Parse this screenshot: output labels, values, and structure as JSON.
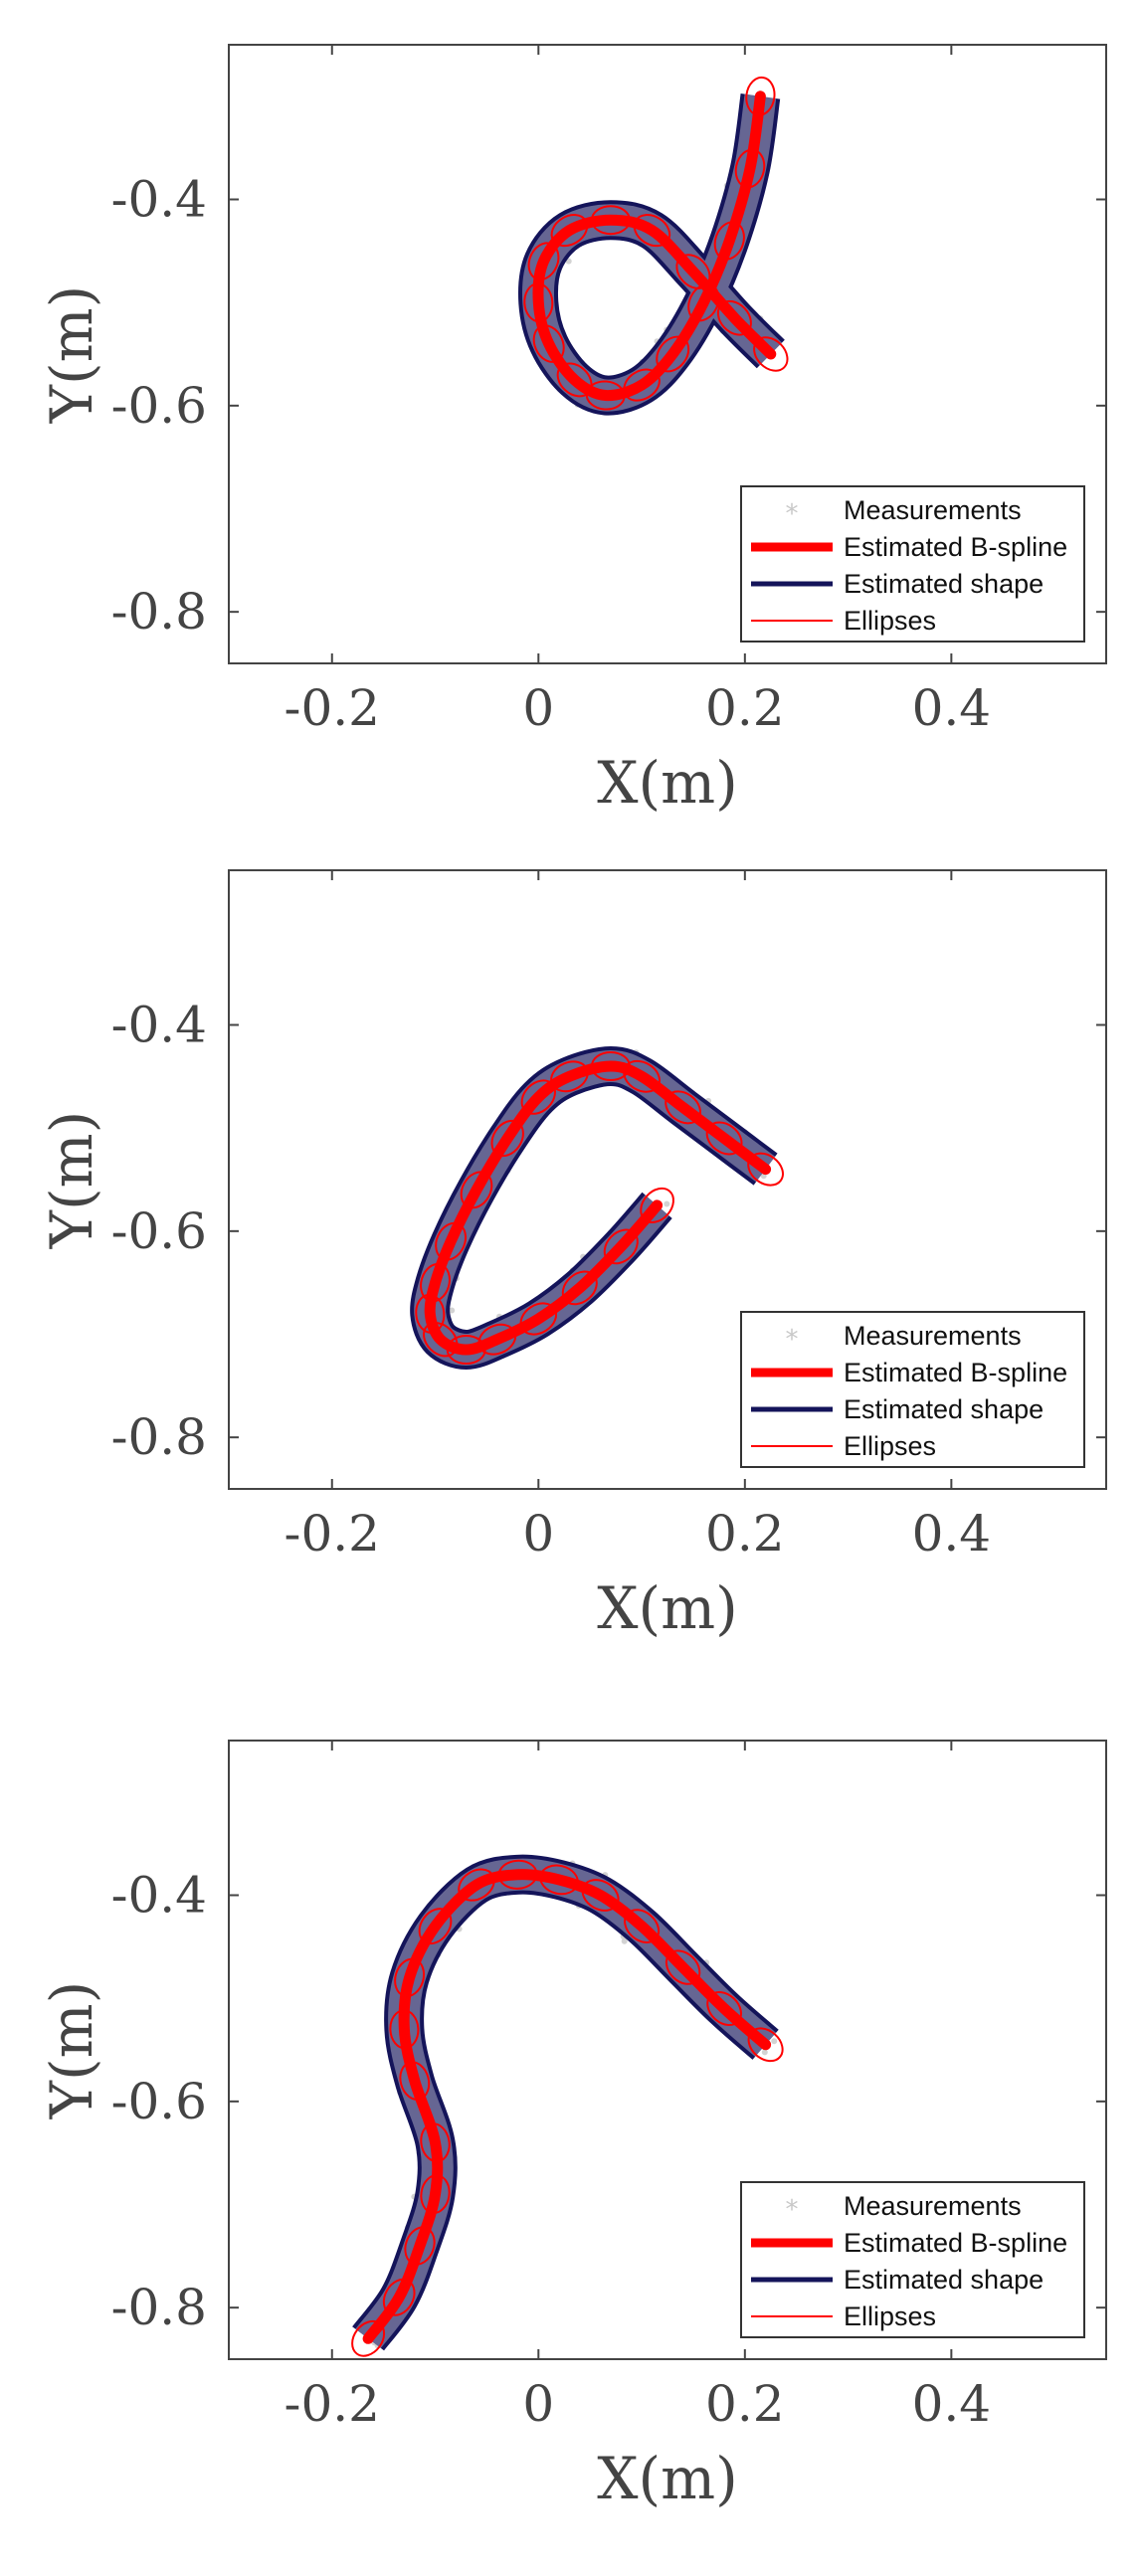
{
  "colors": {
    "measurements": "#c8c8c8",
    "bspline": "#ff0000",
    "shape": "#14145a",
    "ellipses": "#ff0000",
    "axes": "#444444"
  },
  "chart_data": [
    {
      "type": "line",
      "xlabel": "X(m)",
      "ylabel": "Y(m)",
      "xlim": [
        -0.3,
        0.55
      ],
      "ylim": [
        -0.85,
        -0.25
      ],
      "xticks": [
        "-0.2",
        "0",
        "0.2",
        "0.4"
      ],
      "xtick_values": [
        -0.2,
        0,
        0.2,
        0.4
      ],
      "yticks": [
        "-0.4",
        "-0.6",
        "-0.8"
      ],
      "ytick_values": [
        -0.4,
        -0.6,
        -0.8
      ],
      "grid": false,
      "legend_position": "bottom-right",
      "legend": [
        {
          "label": "Measurements",
          "style": "marker"
        },
        {
          "label": "Estimated B-spline",
          "style": "thick"
        },
        {
          "label": "Estimated shape",
          "style": "shape"
        },
        {
          "label": "Ellipses",
          "style": "thin"
        }
      ],
      "bspline": {
        "x": [
          0.215,
          0.205,
          0.185,
          0.16,
          0.13,
          0.1,
          0.065,
          0.035,
          0.01,
          0.0,
          0.005,
          0.03,
          0.07,
          0.11,
          0.15,
          0.19,
          0.225
        ],
        "y": [
          -0.3,
          -0.37,
          -0.44,
          -0.5,
          -0.55,
          -0.58,
          -0.59,
          -0.575,
          -0.54,
          -0.5,
          -0.46,
          -0.43,
          -0.42,
          -0.43,
          -0.47,
          -0.515,
          -0.55
        ]
      }
    },
    {
      "type": "line",
      "xlabel": "X(m)",
      "ylabel": "Y(m)",
      "xlim": [
        -0.3,
        0.55
      ],
      "ylim": [
        -0.85,
        -0.25
      ],
      "xticks": [
        "-0.2",
        "0",
        "0.2",
        "0.4"
      ],
      "xtick_values": [
        -0.2,
        0,
        0.2,
        0.4
      ],
      "yticks": [
        "-0.4",
        "-0.6",
        "-0.8"
      ],
      "ytick_values": [
        -0.4,
        -0.6,
        -0.8
      ],
      "grid": false,
      "legend_position": "bottom-right",
      "legend": [
        {
          "label": "Measurements",
          "style": "marker"
        },
        {
          "label": "Estimated B-spline",
          "style": "thick"
        },
        {
          "label": "Estimated shape",
          "style": "shape"
        },
        {
          "label": "Ellipses",
          "style": "thin"
        }
      ],
      "bspline": {
        "x": [
          0.22,
          0.18,
          0.14,
          0.1,
          0.07,
          0.03,
          0.0,
          -0.03,
          -0.06,
          -0.085,
          -0.1,
          -0.105,
          -0.095,
          -0.07,
          -0.04,
          0.0,
          0.04,
          0.08,
          0.115
        ],
        "y": [
          -0.54,
          -0.51,
          -0.48,
          -0.45,
          -0.44,
          -0.45,
          -0.47,
          -0.51,
          -0.56,
          -0.61,
          -0.65,
          -0.68,
          -0.705,
          -0.715,
          -0.705,
          -0.685,
          -0.655,
          -0.615,
          -0.575
        ]
      }
    },
    {
      "type": "line",
      "xlabel": "X(m)",
      "ylabel": "Y(m)",
      "xlim": [
        -0.3,
        0.55
      ],
      "ylim": [
        -0.85,
        -0.25
      ],
      "xticks": [
        "-0.2",
        "0",
        "0.2",
        "0.4"
      ],
      "xtick_values": [
        -0.2,
        0,
        0.2,
        0.4
      ],
      "yticks": [
        "-0.4",
        "-0.6",
        "-0.8"
      ],
      "ytick_values": [
        -0.4,
        -0.6,
        -0.8
      ],
      "grid": false,
      "legend_position": "bottom-right",
      "legend": [
        {
          "label": "Measurements",
          "style": "marker"
        },
        {
          "label": "Estimated B-spline",
          "style": "thick"
        },
        {
          "label": "Estimated shape",
          "style": "shape"
        },
        {
          "label": "Ellipses",
          "style": "thin"
        }
      ],
      "bspline": {
        "x": [
          0.22,
          0.18,
          0.14,
          0.1,
          0.06,
          0.02,
          -0.02,
          -0.06,
          -0.1,
          -0.125,
          -0.13,
          -0.12,
          -0.1,
          -0.1,
          -0.115,
          -0.135,
          -0.165
        ],
        "y": [
          -0.545,
          -0.51,
          -0.47,
          -0.43,
          -0.4,
          -0.385,
          -0.38,
          -0.39,
          -0.43,
          -0.48,
          -0.53,
          -0.58,
          -0.64,
          -0.69,
          -0.74,
          -0.79,
          -0.83
        ]
      }
    }
  ]
}
